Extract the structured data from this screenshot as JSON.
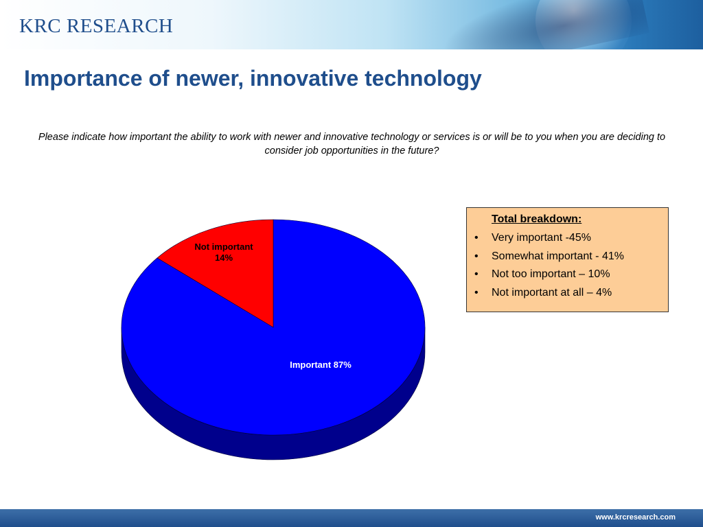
{
  "header": {
    "logo": "KRC RESEARCH"
  },
  "slide": {
    "title": "Importance of newer, innovative technology",
    "question": "Please indicate how important the ability to work with newer and innovative technology or services is or will be to you when you are deciding to consider job opportunities in the future?"
  },
  "chart_data": {
    "type": "pie",
    "slices": [
      {
        "label": "Important",
        "value": 87,
        "label_text": "Important  87%",
        "color": "#0000ff"
      },
      {
        "label": "Not important",
        "value": 14,
        "label_text": "Not important\n14%",
        "color": "#ff0000"
      }
    ]
  },
  "breakdown": {
    "title": "Total breakdown:",
    "items": [
      "Very important -45%",
      "Somewhat important - 41%",
      "Not too important – 10%",
      "Not important at all – 4%"
    ]
  },
  "footer": {
    "url": "www.krcresearch.com"
  }
}
